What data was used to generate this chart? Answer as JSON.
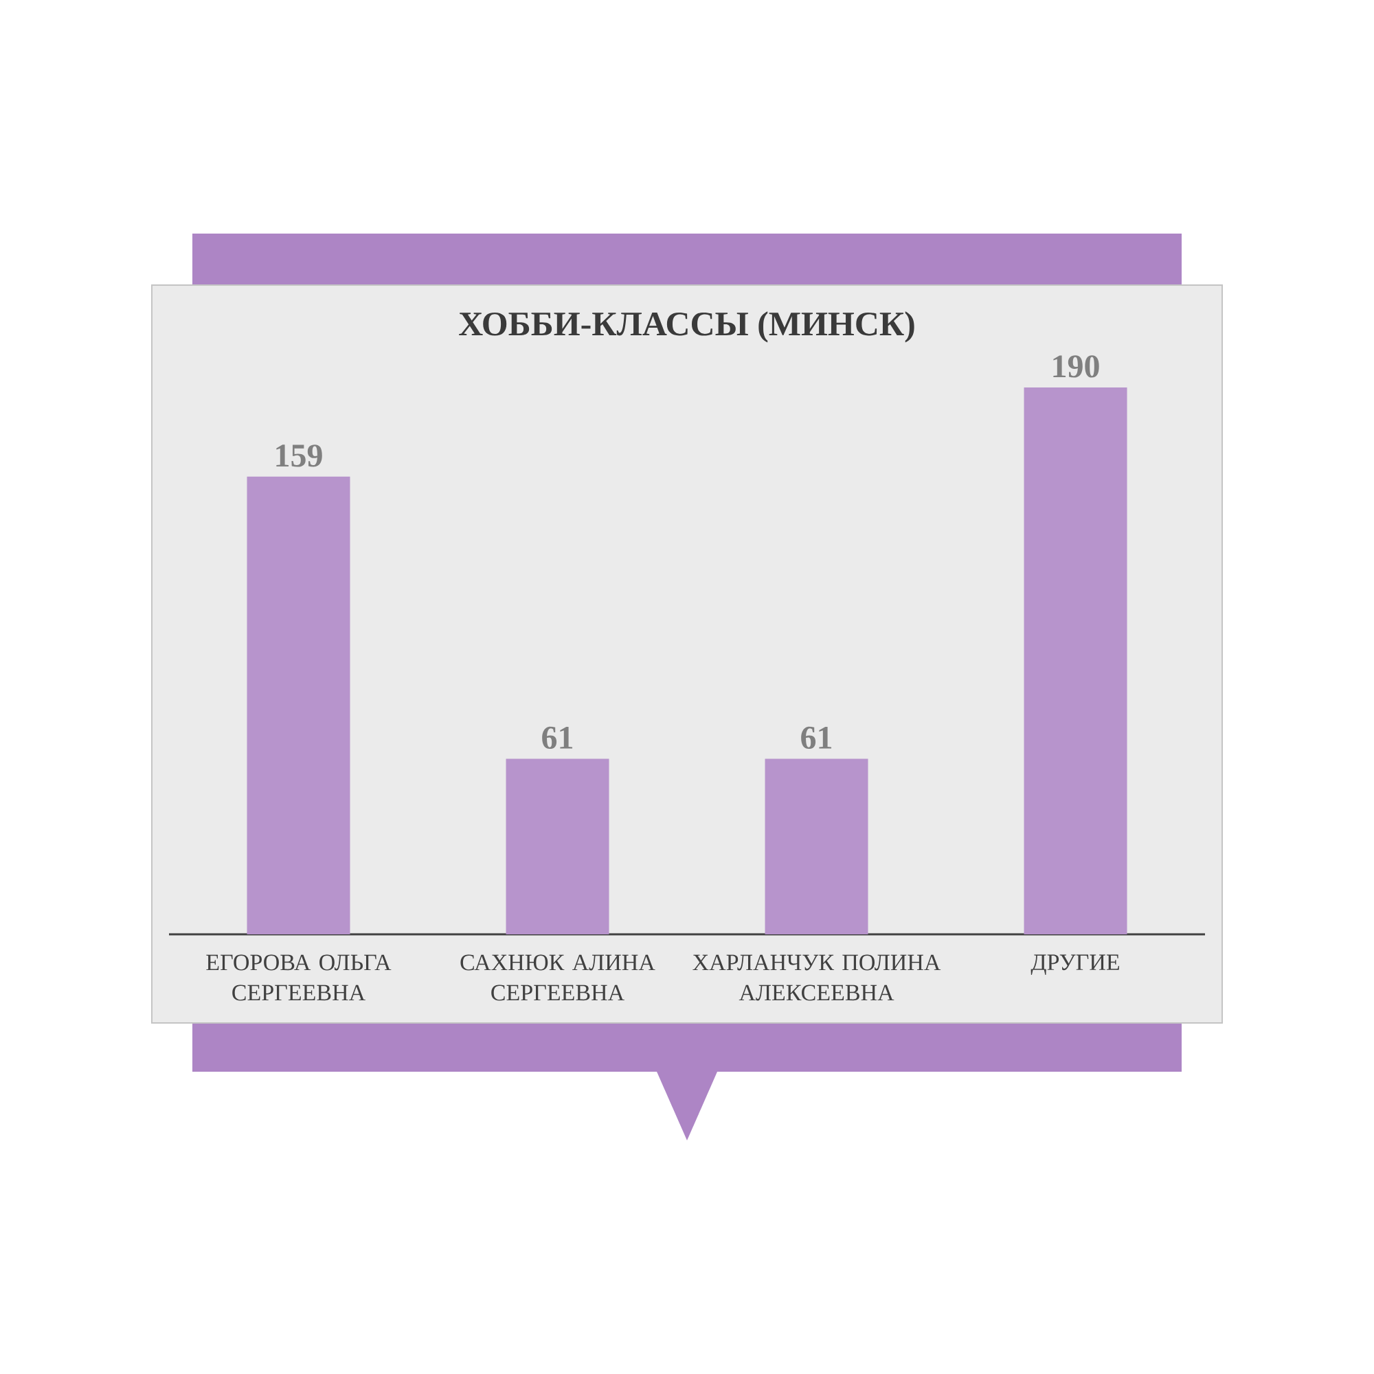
{
  "chart_data": {
    "type": "bar",
    "title": "ХОББИ-КЛАССЫ (МИНСК)",
    "categories": [
      "ЕГОРОВА ОЛЬГА СЕРГЕЕВНА",
      "САХНЮК АЛИНА СЕРГЕЕВНА",
      "ХАРЛАНЧУК ПОЛИНА АЛЕКСЕЕВНА",
      "ДРУГИЕ"
    ],
    "values": [
      159,
      61,
      61,
      190
    ],
    "color": "#b794cc",
    "data_labels": true
  }
}
